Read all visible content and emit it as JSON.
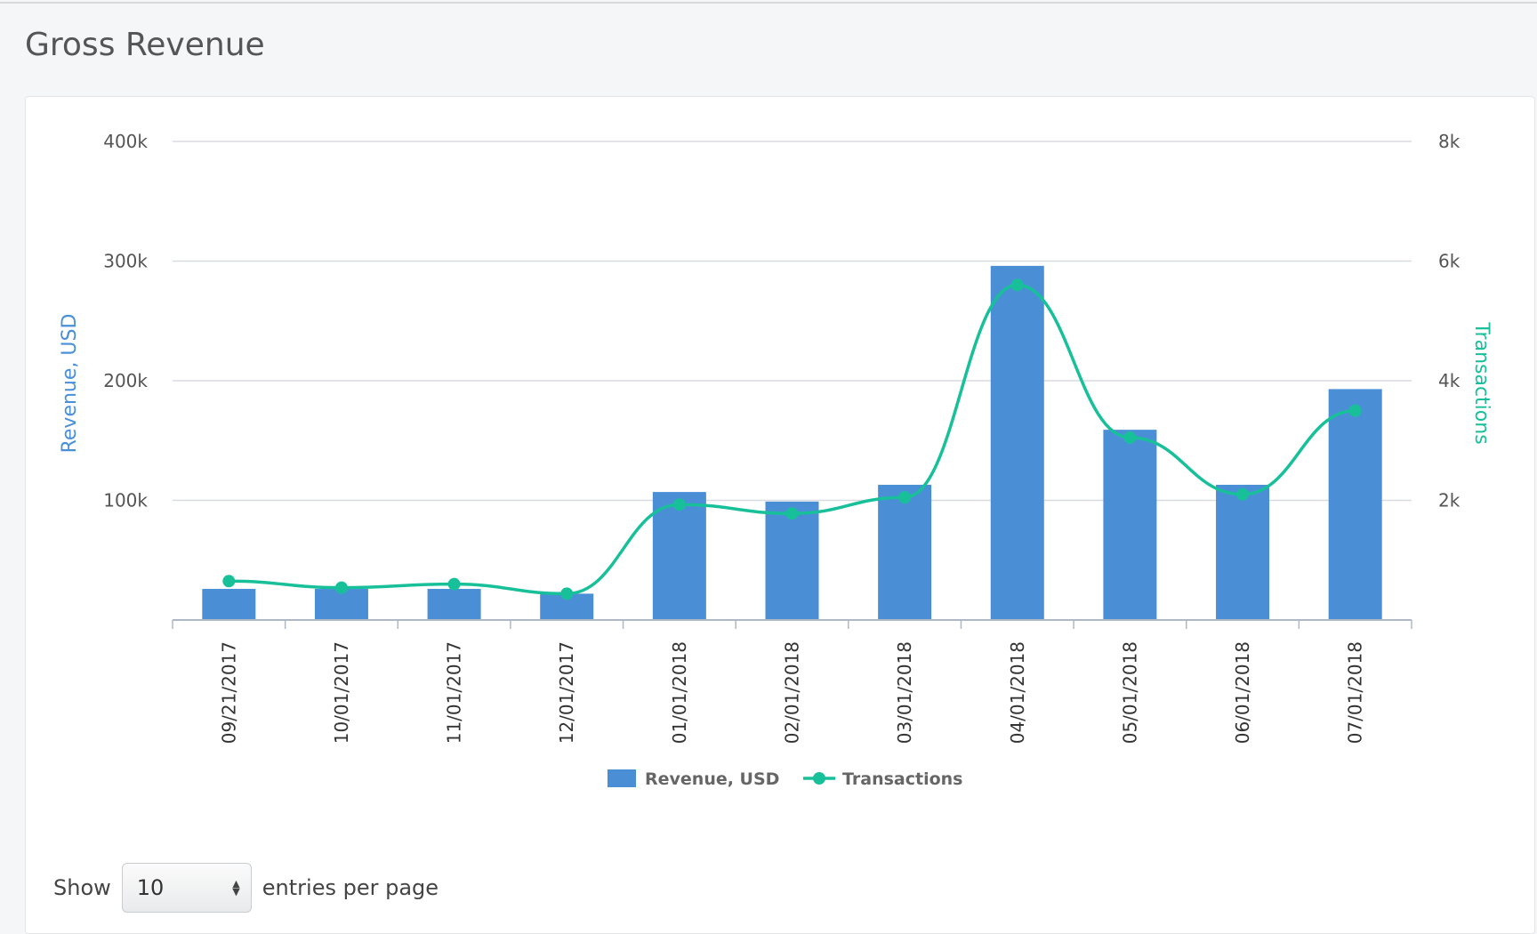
{
  "page": {
    "title": "Gross Revenue"
  },
  "chart_data": {
    "type": "bar",
    "categories": [
      "09/21/2017",
      "10/01/2017",
      "11/01/2017",
      "12/01/2017",
      "01/01/2018",
      "02/01/2018",
      "03/01/2018",
      "04/01/2018",
      "05/01/2018",
      "06/01/2018",
      "07/01/2018"
    ],
    "series": [
      {
        "name": "Revenue, USD",
        "type": "bar",
        "axis": "left",
        "values": [
          26000,
          26000,
          26000,
          22000,
          107000,
          99000,
          113000,
          296000,
          159000,
          113000,
          193000
        ]
      },
      {
        "name": "Transactions",
        "type": "line",
        "axis": "right",
        "values": [
          650,
          540,
          600,
          440,
          1930,
          1780,
          2050,
          5600,
          3050,
          2100,
          3500
        ]
      }
    ],
    "ylabel": "Revenue, USD",
    "y2label": "Transactions",
    "ylim": [
      0,
      400000
    ],
    "y2lim": [
      0,
      8000
    ],
    "yticks": [
      "100k",
      "200k",
      "300k",
      "400k"
    ],
    "y2ticks": [
      "2k",
      "4k",
      "6k",
      "8k"
    ],
    "grid": true,
    "legend_position": "bottom-center",
    "colors": {
      "bars": "#4a8fd6",
      "line": "#18c09a"
    }
  },
  "pagination": {
    "show_label": "Show",
    "page_size": "10",
    "suffix_label": "entries per page"
  }
}
